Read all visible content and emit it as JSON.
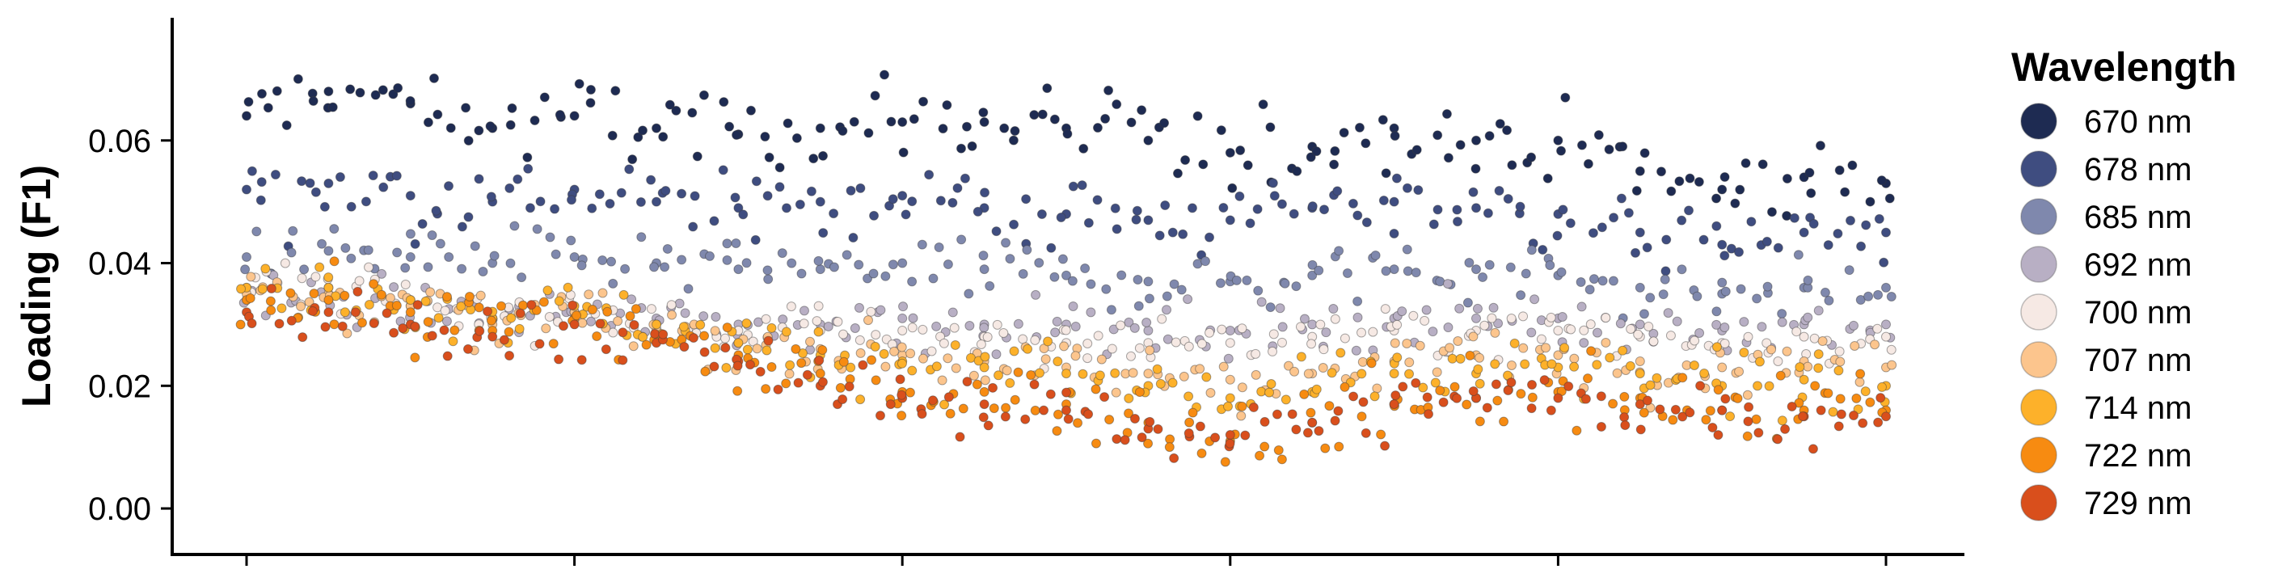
{
  "chart_data": {
    "type": "scatter",
    "ylabel": "Loading (F1)",
    "xlabel": "",
    "ylim": [
      -0.0075,
      0.08
    ],
    "xlim": [
      -0.023,
      0.523
    ],
    "y_ticks": [
      0.0,
      0.02,
      0.04,
      0.06
    ],
    "y_tick_labels": [
      "0.00",
      "0.02",
      "0.04",
      "0.06"
    ],
    "x_ticks": [
      0.0,
      0.1,
      0.2,
      0.3,
      0.4,
      0.5
    ],
    "x_tick_labels": [
      "",
      "",
      "",
      "",
      "",
      ""
    ],
    "grid": false,
    "legend": {
      "title": "Wavelength",
      "placement": "right",
      "entries": [
        "670 nm",
        "678 nm",
        "685 nm",
        "692 nm",
        "700 nm",
        "707 nm",
        "714 nm",
        "722 nm",
        "729 nm"
      ]
    },
    "series": [
      {
        "name": "670 nm",
        "color": "#1e2b52",
        "x": [
          0.0,
          0.025,
          0.05,
          0.075,
          0.1,
          0.125,
          0.15,
          0.175,
          0.2,
          0.225,
          0.25,
          0.275,
          0.3,
          0.325,
          0.35,
          0.375,
          0.4,
          0.425,
          0.45,
          0.475,
          0.5
        ],
        "values": [
          0.064,
          0.068,
          0.066,
          0.062,
          0.064,
          0.062,
          0.061,
          0.062,
          0.063,
          0.063,
          0.062,
          0.06,
          0.058,
          0.059,
          0.062,
          0.06,
          0.06,
          0.055,
          0.052,
          0.054,
          0.053
        ]
      },
      {
        "name": "678 nm",
        "color": "#3f4d80",
        "x": [
          0.0,
          0.025,
          0.05,
          0.075,
          0.1,
          0.125,
          0.15,
          0.175,
          0.2,
          0.225,
          0.25,
          0.275,
          0.3,
          0.325,
          0.35,
          0.375,
          0.4,
          0.425,
          0.45,
          0.475,
          0.5
        ],
        "values": [
          0.052,
          0.053,
          0.051,
          0.05,
          0.052,
          0.05,
          0.049,
          0.05,
          0.051,
          0.049,
          0.048,
          0.047,
          0.047,
          0.049,
          0.05,
          0.049,
          0.048,
          0.045,
          0.043,
          0.045,
          0.045
        ]
      },
      {
        "name": "685 nm",
        "color": "#7f88ad",
        "x": [
          0.0,
          0.025,
          0.05,
          0.075,
          0.1,
          0.125,
          0.15,
          0.175,
          0.2,
          0.225,
          0.25,
          0.275,
          0.3,
          0.325,
          0.35,
          0.375,
          0.4,
          0.425,
          0.45,
          0.475,
          0.5
        ],
        "values": [
          0.041,
          0.042,
          0.041,
          0.04,
          0.041,
          0.04,
          0.039,
          0.039,
          0.04,
          0.039,
          0.038,
          0.037,
          0.037,
          0.038,
          0.039,
          0.039,
          0.038,
          0.036,
          0.035,
          0.036,
          0.036
        ]
      },
      {
        "name": "692 nm",
        "color": "#b8afc4",
        "x": [
          0.0,
          0.025,
          0.05,
          0.075,
          0.1,
          0.125,
          0.15,
          0.175,
          0.2,
          0.225,
          0.25,
          0.275,
          0.3,
          0.325,
          0.35,
          0.375,
          0.4,
          0.425,
          0.45,
          0.475,
          0.5
        ],
        "values": [
          0.034,
          0.034,
          0.033,
          0.031,
          0.032,
          0.031,
          0.03,
          0.03,
          0.031,
          0.03,
          0.03,
          0.029,
          0.029,
          0.03,
          0.031,
          0.031,
          0.031,
          0.03,
          0.029,
          0.03,
          0.03
        ]
      },
      {
        "name": "700 nm",
        "color": "#f6e9e4",
        "x": [
          0.0,
          0.025,
          0.05,
          0.075,
          0.1,
          0.125,
          0.15,
          0.175,
          0.2,
          0.225,
          0.25,
          0.275,
          0.3,
          0.325,
          0.35,
          0.375,
          0.4,
          0.425,
          0.45,
          0.475,
          0.5
        ],
        "values": [
          0.036,
          0.036,
          0.034,
          0.031,
          0.032,
          0.03,
          0.029,
          0.029,
          0.029,
          0.028,
          0.027,
          0.027,
          0.027,
          0.028,
          0.029,
          0.029,
          0.029,
          0.028,
          0.027,
          0.028,
          0.028
        ]
      },
      {
        "name": "707 nm",
        "color": "#fcc58d",
        "x": [
          0.0,
          0.025,
          0.05,
          0.075,
          0.1,
          0.125,
          0.15,
          0.175,
          0.2,
          0.225,
          0.25,
          0.275,
          0.3,
          0.325,
          0.35,
          0.375,
          0.4,
          0.425,
          0.45,
          0.475,
          0.5
        ],
        "values": [
          0.035,
          0.035,
          0.033,
          0.03,
          0.032,
          0.029,
          0.027,
          0.026,
          0.025,
          0.024,
          0.023,
          0.022,
          0.021,
          0.022,
          0.024,
          0.025,
          0.025,
          0.024,
          0.023,
          0.024,
          0.023
        ]
      },
      {
        "name": "714 nm",
        "color": "#fdb12a",
        "x": [
          0.0,
          0.025,
          0.05,
          0.075,
          0.1,
          0.125,
          0.15,
          0.175,
          0.2,
          0.225,
          0.25,
          0.275,
          0.3,
          0.325,
          0.35,
          0.375,
          0.4,
          0.425,
          0.45,
          0.475,
          0.5
        ],
        "values": [
          0.036,
          0.036,
          0.034,
          0.031,
          0.033,
          0.03,
          0.027,
          0.025,
          0.024,
          0.023,
          0.022,
          0.02,
          0.018,
          0.019,
          0.022,
          0.022,
          0.023,
          0.022,
          0.02,
          0.021,
          0.02
        ]
      },
      {
        "name": "722 nm",
        "color": "#f78b11",
        "x": [
          0.0,
          0.025,
          0.05,
          0.075,
          0.1,
          0.125,
          0.15,
          0.175,
          0.2,
          0.225,
          0.25,
          0.275,
          0.3,
          0.325,
          0.35,
          0.375,
          0.4,
          0.425,
          0.45,
          0.475,
          0.5
        ],
        "values": [
          0.034,
          0.034,
          0.032,
          0.029,
          0.031,
          0.028,
          0.025,
          0.022,
          0.019,
          0.019,
          0.017,
          0.014,
          0.011,
          0.014,
          0.017,
          0.018,
          0.019,
          0.018,
          0.016,
          0.016,
          0.016
        ]
      },
      {
        "name": "729 nm",
        "color": "#d94f1c",
        "x": [
          0.0,
          0.025,
          0.05,
          0.075,
          0.1,
          0.125,
          0.15,
          0.175,
          0.2,
          0.225,
          0.25,
          0.275,
          0.3,
          0.325,
          0.35,
          0.375,
          0.4,
          0.425,
          0.45,
          0.475,
          0.5
        ],
        "values": [
          0.032,
          0.032,
          0.03,
          0.028,
          0.03,
          0.027,
          0.024,
          0.02,
          0.018,
          0.017,
          0.016,
          0.013,
          0.012,
          0.014,
          0.017,
          0.018,
          0.018,
          0.017,
          0.016,
          0.015,
          0.015
        ]
      }
    ]
  }
}
